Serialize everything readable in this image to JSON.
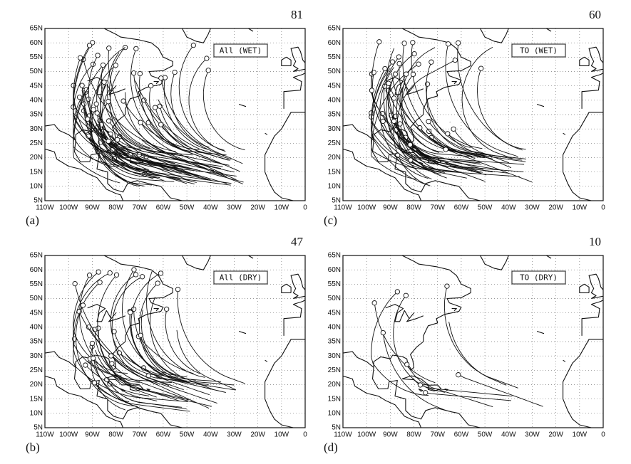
{
  "panels": [
    {
      "label": "(a)",
      "count": 81,
      "legend": "All (WET)"
    },
    {
      "label": "(c)",
      "count": 60,
      "legend": "TO (WET)"
    },
    {
      "label": "(b)",
      "count": 47,
      "legend": "All (DRY)"
    },
    {
      "label": "(d)",
      "count": 10,
      "legend": "TO (DRY)"
    }
  ],
  "lat_labels": [
    "65N",
    "60N",
    "55N",
    "50N",
    "45N",
    "40N",
    "35N",
    "30N",
    "25N",
    "20N",
    "15N",
    "10N",
    "5N"
  ],
  "lon_labels": [
    "110W",
    "100W",
    "90W",
    "80W",
    "70W",
    "60W",
    "50W",
    "40W",
    "30W",
    "20W",
    "10W",
    "0"
  ]
}
